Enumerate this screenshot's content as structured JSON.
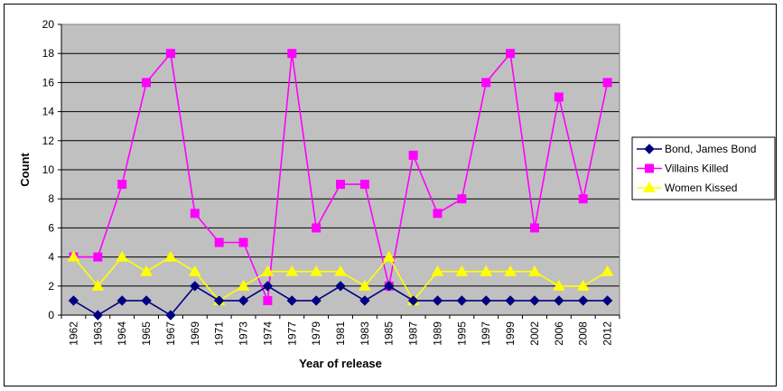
{
  "chart_data": {
    "type": "line",
    "title": "",
    "xlabel": "Year of release",
    "ylabel": "Count",
    "ylim": [
      0,
      20
    ],
    "yticks": [
      0,
      2,
      4,
      6,
      8,
      10,
      12,
      14,
      16,
      18,
      20
    ],
    "grid": true,
    "legend_position": "right",
    "plot_background": "#c0c0c0",
    "categories": [
      "1962",
      "1963",
      "1964",
      "1965",
      "1967",
      "1969",
      "1971",
      "1973",
      "1974",
      "1977",
      "1979",
      "1981",
      "1983",
      "1985",
      "1987",
      "1989",
      "1995",
      "1997",
      "1999",
      "2002",
      "2006",
      "2008",
      "2012"
    ],
    "series": [
      {
        "name": "Bond, James Bond",
        "color": "#000080",
        "marker": "diamond",
        "values": [
          1,
          0,
          1,
          1,
          0,
          2,
          1,
          1,
          2,
          1,
          1,
          2,
          1,
          2,
          1,
          1,
          1,
          1,
          1,
          1,
          1,
          1,
          1
        ]
      },
      {
        "name": "Villains Killed",
        "color": "#ff00ff",
        "marker": "square",
        "values": [
          4,
          4,
          9,
          16,
          18,
          7,
          5,
          5,
          1,
          18,
          6,
          9,
          9,
          2,
          11,
          7,
          8,
          16,
          18,
          6,
          15,
          8,
          16
        ]
      },
      {
        "name": "Women Kissed",
        "color": "#ffff00",
        "marker": "triangle",
        "values": [
          4,
          2,
          4,
          3,
          4,
          3,
          1,
          2,
          3,
          3,
          3,
          3,
          2,
          4,
          1,
          3,
          3,
          3,
          3,
          3,
          2,
          2,
          3
        ]
      }
    ]
  }
}
